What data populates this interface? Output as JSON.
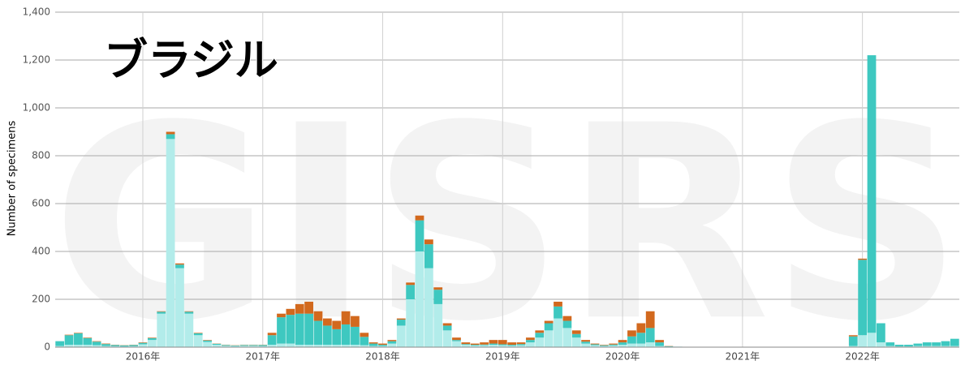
{
  "chart_data": {
    "type": "bar",
    "title": "ブラジル",
    "watermark": "GISRS",
    "y_label": "Number of specimens",
    "categories": [
      null,
      null,
      null,
      null,
      null,
      null,
      null,
      null,
      null,
      "2016年",
      null,
      null,
      null,
      null,
      null,
      null,
      null,
      null,
      null,
      null,
      null,
      null,
      "2017年",
      null,
      null,
      null,
      null,
      null,
      null,
      null,
      null,
      null,
      null,
      null,
      null,
      "2018年",
      null,
      null,
      null,
      null,
      null,
      null,
      null,
      null,
      null,
      null,
      null,
      null,
      "2019年",
      null,
      null,
      null,
      null,
      null,
      null,
      null,
      null,
      null,
      null,
      null,
      null,
      "2020年",
      null,
      null,
      null,
      null,
      null,
      null,
      null,
      null,
      null,
      null,
      null,
      null,
      "2021年",
      null,
      null,
      null,
      null,
      null,
      null,
      null,
      null,
      null,
      null,
      null,
      null,
      "2022年",
      null,
      null,
      null,
      null,
      null,
      null,
      null,
      null,
      null,
      null
    ],
    "series": [
      {
        "color": "#b2ecea",
        "values": [
          5,
          10,
          10,
          10,
          8,
          5,
          4,
          3,
          4,
          12,
          30,
          140,
          870,
          330,
          140,
          50,
          22,
          10,
          6,
          5,
          6,
          6,
          5,
          10,
          15,
          15,
          10,
          10,
          10,
          10,
          10,
          10,
          10,
          8,
          5,
          5,
          15,
          90,
          200,
          400,
          330,
          180,
          70,
          25,
          10,
          7,
          8,
          10,
          8,
          6,
          8,
          20,
          40,
          70,
          120,
          80,
          40,
          15,
          8,
          5,
          7,
          10,
          15,
          15,
          20,
          5,
          2,
          1,
          0,
          0,
          0,
          0,
          0,
          0,
          0,
          0,
          0,
          0,
          0,
          0,
          0,
          0,
          0,
          0,
          0,
          0,
          5,
          50,
          60,
          20,
          5,
          3,
          3,
          5,
          5,
          5,
          5,
          5
        ]
      },
      {
        "color": "#3ec8c0",
        "values": [
          20,
          40,
          48,
          28,
          15,
          8,
          5,
          4,
          5,
          6,
          8,
          8,
          20,
          15,
          8,
          8,
          6,
          4,
          3,
          2,
          3,
          3,
          4,
          40,
          110,
          120,
          130,
          130,
          100,
          80,
          65,
          85,
          75,
          35,
          10,
          5,
          10,
          25,
          60,
          130,
          100,
          60,
          20,
          5,
          3,
          3,
          3,
          5,
          4,
          4,
          5,
          10,
          20,
          30,
          50,
          30,
          15,
          8,
          4,
          3,
          4,
          10,
          30,
          45,
          60,
          15,
          2,
          1,
          0,
          0,
          0,
          0,
          0,
          0,
          0,
          0,
          0,
          0,
          0,
          0,
          0,
          0,
          0,
          0,
          0,
          0,
          40,
          315,
          1160,
          80,
          15,
          7,
          7,
          10,
          15,
          15,
          20,
          30
        ]
      },
      {
        "color": "#d2691e",
        "values": [
          0,
          2,
          2,
          2,
          2,
          2,
          1,
          1,
          1,
          2,
          2,
          2,
          10,
          5,
          2,
          2,
          2,
          1,
          1,
          1,
          1,
          1,
          1,
          10,
          15,
          25,
          40,
          50,
          40,
          30,
          35,
          55,
          45,
          17,
          5,
          5,
          5,
          5,
          10,
          20,
          20,
          10,
          10,
          10,
          7,
          5,
          9,
          15,
          18,
          10,
          7,
          10,
          10,
          10,
          20,
          20,
          15,
          7,
          3,
          2,
          4,
          10,
          25,
          40,
          70,
          10,
          1,
          0,
          0,
          0,
          0,
          0,
          0,
          0,
          0,
          0,
          0,
          0,
          0,
          0,
          0,
          0,
          0,
          0,
          0,
          0,
          5,
          5,
          0,
          0,
          0,
          0,
          0,
          0,
          0,
          0,
          0,
          0
        ]
      }
    ],
    "ylim": [
      0,
      1400
    ],
    "yticks": [
      0,
      200,
      400,
      600,
      800,
      {
        "value": 1000,
        "label": "1,000"
      },
      {
        "value": 1200,
        "label": "1,200"
      },
      {
        "value": 1400,
        "label": "1,400"
      }
    ],
    "grid": true
  }
}
